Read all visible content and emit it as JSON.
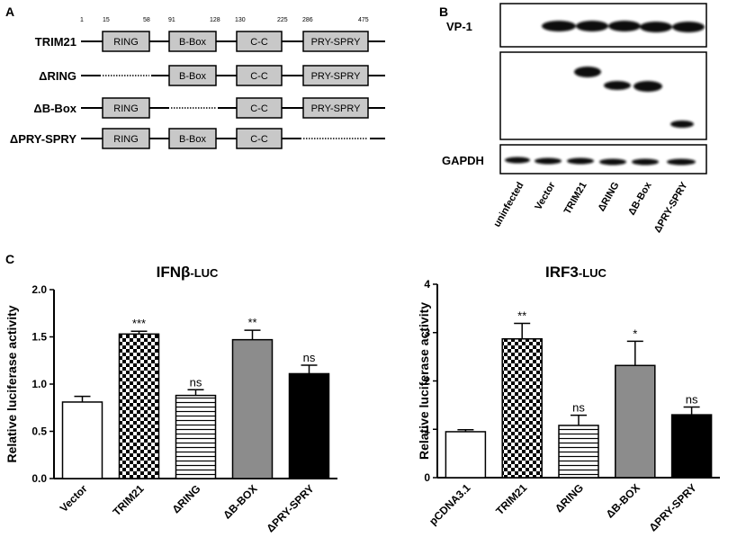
{
  "panels": {
    "a": {
      "label": "A"
    },
    "b": {
      "label": "B"
    },
    "c": {
      "label": "C"
    }
  },
  "domain_diagram": {
    "positions": [
      "1",
      "15",
      "58",
      "91",
      "128",
      "130",
      "225",
      "286",
      "475"
    ],
    "constructs": [
      {
        "name": "TRIM21",
        "domains": [
          "RING",
          "B-Box",
          "C-C",
          "PRY-SPRY"
        ],
        "missing": ""
      },
      {
        "name": "ΔRING",
        "domains": [
          "",
          "B-Box",
          "C-C",
          "PRY-SPRY"
        ],
        "missing": "RING"
      },
      {
        "name": "ΔB-Box",
        "domains": [
          "RING",
          "",
          "C-C",
          "PRY-SPRY"
        ],
        "missing": "B-Box"
      },
      {
        "name": "ΔPRY-SPRY",
        "domains": [
          "RING",
          "B-Box",
          "C-C",
          ""
        ],
        "missing": "PRY-SPRY"
      }
    ]
  },
  "western_blot": {
    "rows": [
      "VP-1",
      "",
      "GAPDH"
    ],
    "lanes": [
      "uninfected",
      "Vector",
      "TRIM21",
      "ΔRING",
      "ΔB-Box",
      "ΔPRY-SPRY"
    ]
  },
  "chart_data": [
    {
      "type": "bar",
      "title": "IFNβ-LUC",
      "title_main": "IFNβ",
      "title_suffix": "-LUC",
      "ylabel": "Relative luciferase activity",
      "ylim": [
        0,
        2.0
      ],
      "yticks": [
        "0.0",
        "0.5",
        "1.0",
        "1.5",
        "2.0"
      ],
      "categories": [
        "Vector",
        "TRIM21",
        "ΔRING",
        "ΔB-BOX",
        "ΔPRY-SPRY"
      ],
      "values": [
        0.81,
        1.53,
        0.88,
        1.47,
        1.11
      ],
      "errors": [
        0.06,
        0.03,
        0.06,
        0.1,
        0.09
      ],
      "significance": [
        "",
        "***",
        "ns",
        "**",
        "ns"
      ],
      "fills": [
        "white",
        "checker",
        "hlines",
        "gray",
        "black"
      ]
    },
    {
      "type": "bar",
      "title": "IRF3-LUC",
      "title_main": "IRF3",
      "title_suffix": "-LUC",
      "ylabel": "Relative luciferase activity",
      "ylim": [
        0,
        4
      ],
      "yticks": [
        "0",
        "1",
        "2",
        "3",
        "4"
      ],
      "categories": [
        "pCDNA3.1",
        "TRIM21",
        "ΔRING",
        "ΔB-BOX",
        "ΔPRY-SPRY"
      ],
      "values": [
        0.95,
        2.87,
        1.08,
        2.32,
        1.3
      ],
      "errors": [
        0.04,
        0.32,
        0.21,
        0.5,
        0.16
      ],
      "significance": [
        "",
        "**",
        "ns",
        "*",
        "ns"
      ],
      "fills": [
        "white",
        "checker",
        "hlines",
        "gray",
        "black"
      ]
    }
  ]
}
